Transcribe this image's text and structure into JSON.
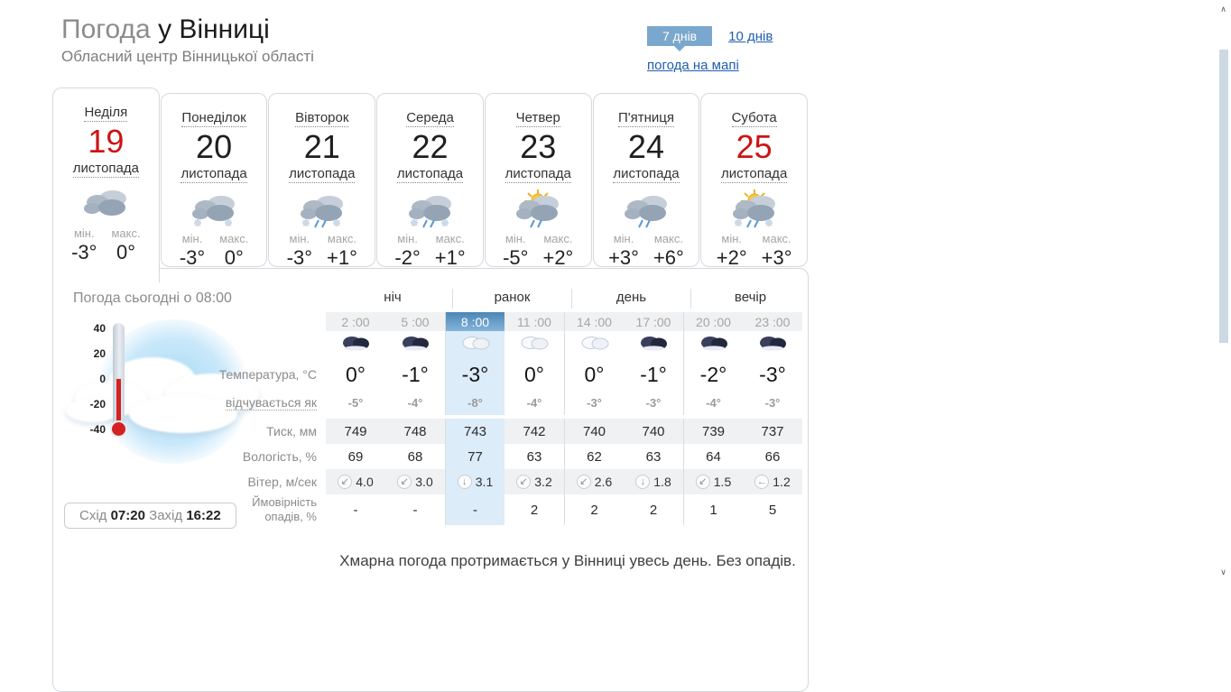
{
  "page": {
    "title_light": "Погода",
    "title_bold": "у Вінниці",
    "subtitle": "Обласний центр Вінницької області"
  },
  "nav": {
    "tab_7days": "7 днів",
    "link_10days": "10 днів",
    "link_map": "погода на мапі"
  },
  "labels": {
    "min": "мін.",
    "max": "макс."
  },
  "day_tabs": [
    {
      "day": "Неділя",
      "date": "19",
      "red": true,
      "active": true,
      "month": "листопада",
      "icon": "cloudy",
      "min": "-3°",
      "max": "0°"
    },
    {
      "day": "Понеділок",
      "date": "20",
      "red": false,
      "active": false,
      "month": "листопада",
      "icon": "cloudy-snow",
      "min": "-3°",
      "max": "0°"
    },
    {
      "day": "Вівторок",
      "date": "21",
      "red": false,
      "active": false,
      "month": "листопада",
      "icon": "sleet",
      "min": "-3°",
      "max": "+1°"
    },
    {
      "day": "Середа",
      "date": "22",
      "red": false,
      "active": false,
      "month": "листопада",
      "icon": "sleet",
      "min": "-2°",
      "max": "+1°"
    },
    {
      "day": "Четвер",
      "date": "23",
      "red": false,
      "active": false,
      "month": "листопада",
      "icon": "sun-rain",
      "min": "-5°",
      "max": "+2°"
    },
    {
      "day": "П'ятниця",
      "date": "24",
      "red": false,
      "active": false,
      "month": "листопада",
      "icon": "rain",
      "min": "+3°",
      "max": "+6°"
    },
    {
      "day": "Субота",
      "date": "25",
      "red": true,
      "active": false,
      "month": "листопада",
      "icon": "sun-sleet",
      "min": "+2°",
      "max": "+3°"
    }
  ],
  "today": {
    "heading": "Погода сьогодні о 08:00",
    "thermometer_scale": [
      "40",
      "20",
      "0",
      "-20",
      "-40"
    ],
    "periods": [
      "ніч",
      "ранок",
      "день",
      "вечір"
    ],
    "row_labels": {
      "temp": "Температура, °C",
      "feels": "відчувається як",
      "pressure": "Тиск, мм",
      "humidity": "Вологість, %",
      "wind": "Вітер, м/сек",
      "precip_line1": "Ймовірність",
      "precip_line2": "опадів, %"
    },
    "columns": [
      {
        "time": "2 :00",
        "active": false,
        "icon": "cloud-night",
        "temp": "0°",
        "feels": "-5°",
        "pressure": "749",
        "humidity": "69",
        "wind_dir": "↙",
        "wind": "4.0",
        "precip": "-"
      },
      {
        "time": "5 :00",
        "active": false,
        "icon": "cloud-night",
        "temp": "-1°",
        "feels": "-4°",
        "pressure": "748",
        "humidity": "68",
        "wind_dir": "↙",
        "wind": "3.0",
        "precip": "-"
      },
      {
        "time": "8 :00",
        "active": true,
        "icon": "cloud-day",
        "temp": "-3°",
        "feels": "-8°",
        "pressure": "743",
        "humidity": "77",
        "wind_dir": "↓",
        "wind": "3.1",
        "precip": "-"
      },
      {
        "time": "11 :00",
        "active": false,
        "icon": "cloud-day",
        "temp": "0°",
        "feels": "-4°",
        "pressure": "742",
        "humidity": "63",
        "wind_dir": "↙",
        "wind": "3.2",
        "precip": "2"
      },
      {
        "time": "14 :00",
        "active": false,
        "icon": "cloud-day",
        "temp": "0°",
        "feels": "-3°",
        "pressure": "740",
        "humidity": "62",
        "wind_dir": "↙",
        "wind": "2.6",
        "precip": "2"
      },
      {
        "time": "17 :00",
        "active": false,
        "icon": "cloud-night",
        "temp": "-1°",
        "feels": "-3°",
        "pressure": "740",
        "humidity": "63",
        "wind_dir": "↓",
        "wind": "1.8",
        "precip": "2"
      },
      {
        "time": "20 :00",
        "active": false,
        "icon": "cloud-night",
        "temp": "-2°",
        "feels": "-4°",
        "pressure": "739",
        "humidity": "64",
        "wind_dir": "↙",
        "wind": "1.5",
        "precip": "1"
      },
      {
        "time": "23 :00",
        "active": false,
        "icon": "cloud-night",
        "temp": "-3°",
        "feels": "-3°",
        "pressure": "737",
        "humidity": "66",
        "wind_dir": "←",
        "wind": "1.2",
        "precip": "5"
      }
    ],
    "sun": {
      "rise_label": "Схід",
      "rise": "07:20",
      "set_label": "Захід",
      "set": "16:22"
    },
    "summary": "Хмарна погода протримається у Вінниці увесь день. Без опадів."
  },
  "icons": {
    "scroll_up": "∧",
    "scroll_down": "∨"
  },
  "colors": {
    "accent_blue": "#7aa7cd",
    "active_column_bg": "#dcecf8",
    "active_time_bg": "#4c86b5",
    "red_date": "#cc1414",
    "link": "#1f5fad"
  }
}
